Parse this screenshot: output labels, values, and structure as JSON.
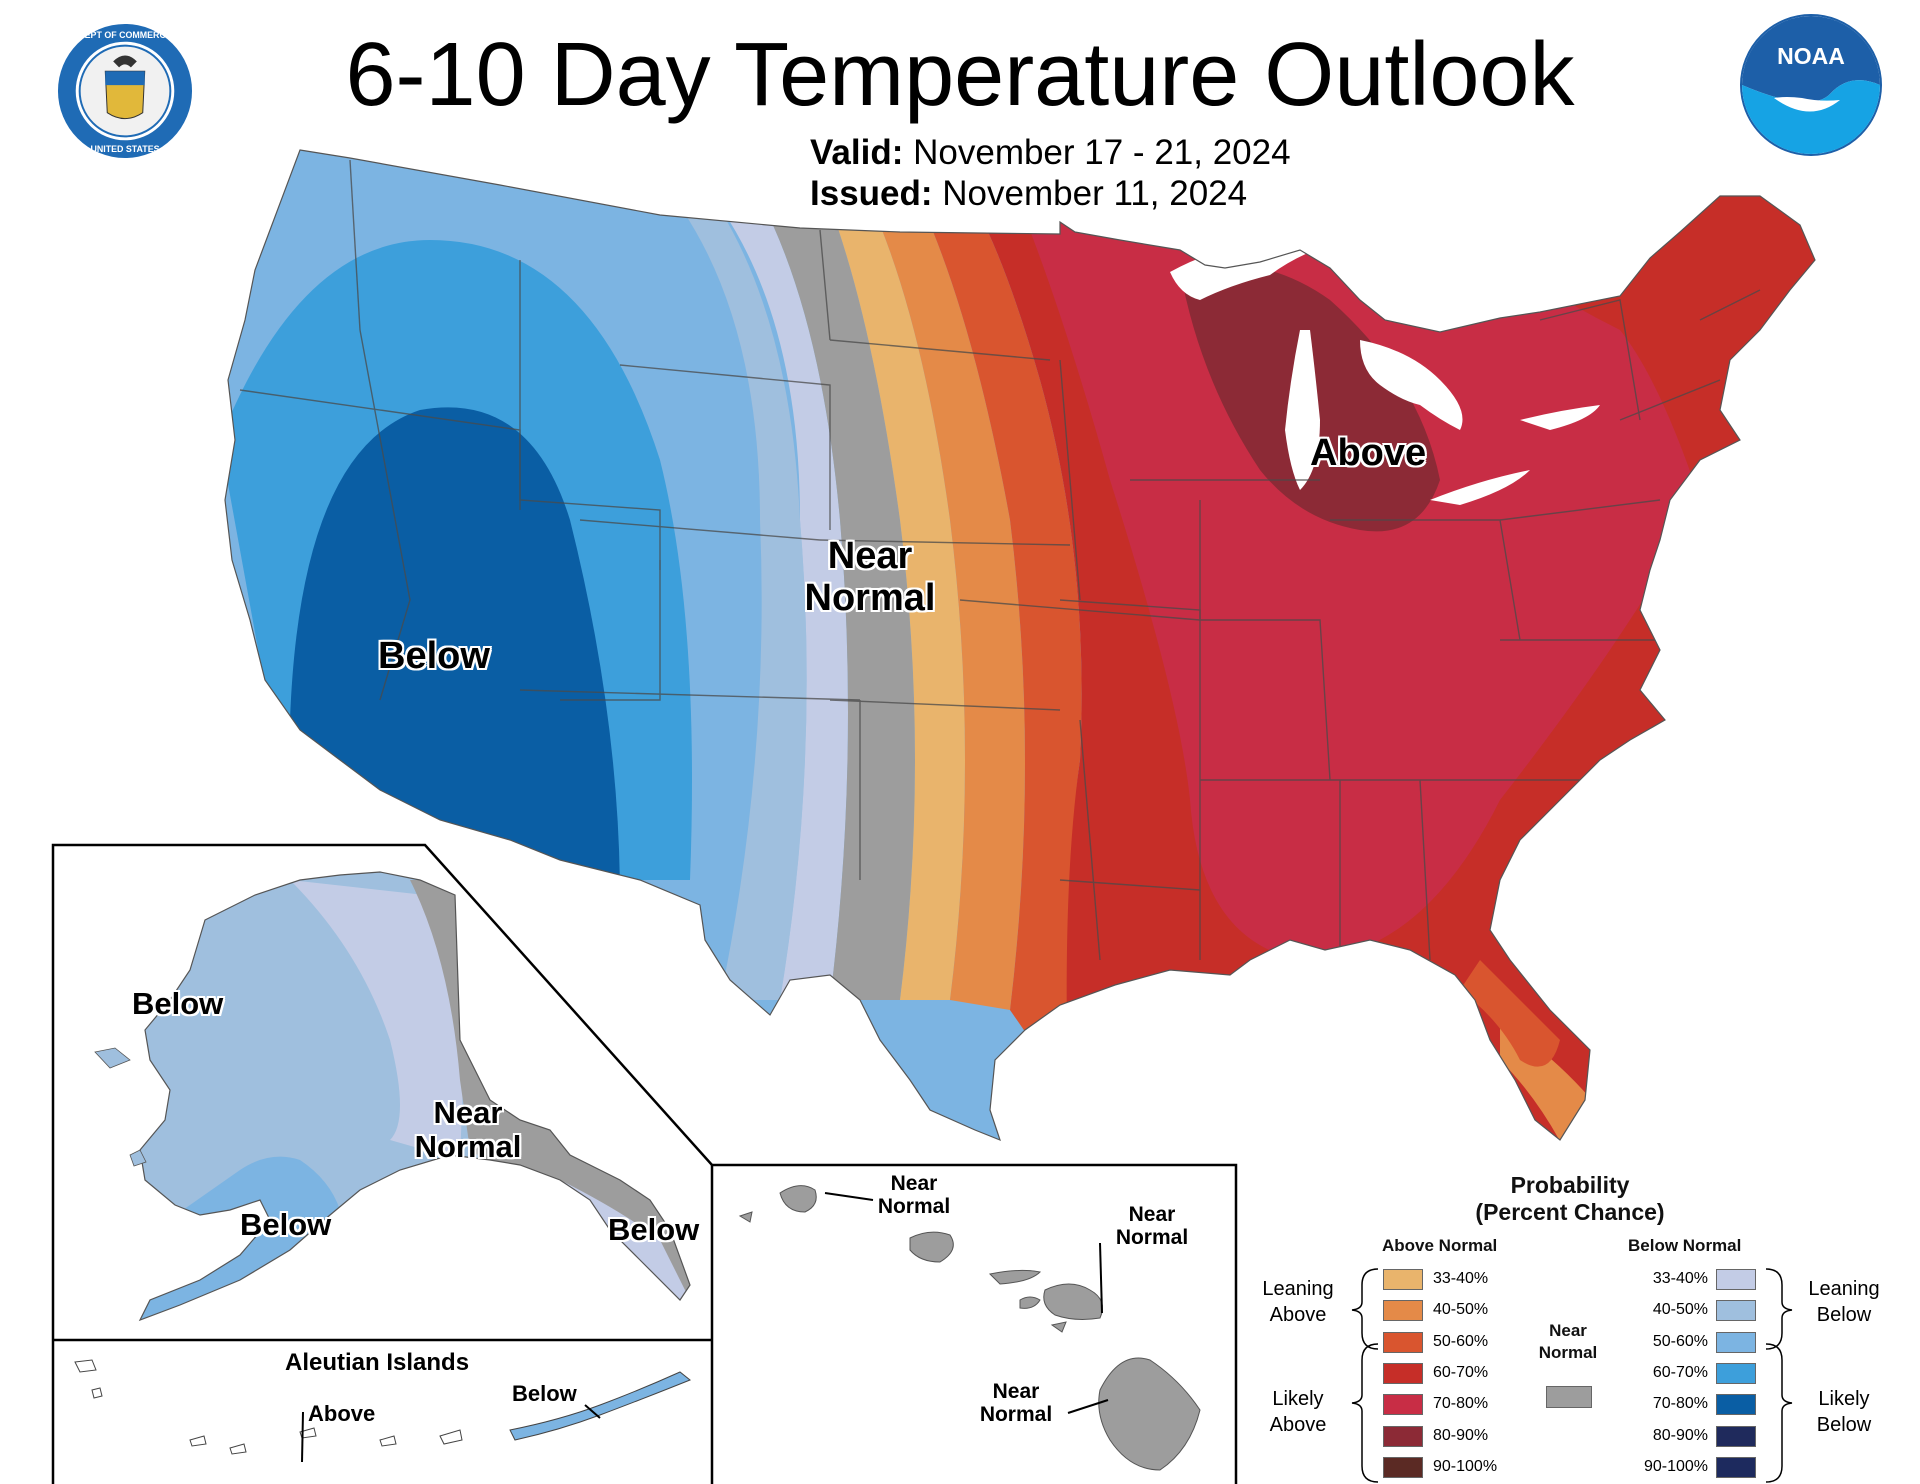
{
  "title": "6-10 Day Temperature Outlook",
  "valid_label": "Valid:",
  "valid_value": "November 17 - 21, 2024",
  "issued_label": "Issued:",
  "issued_value": "November 11, 2024",
  "logos": {
    "seal_text": "DEPARTMENT OF COMMERCE UNITED STATES OF AMERICA",
    "noaa_text": "NOAA"
  },
  "map_labels": {
    "conus_below": "Below",
    "conus_near_1": "Near",
    "conus_near_2": "Normal",
    "conus_above": "Above",
    "ak_below_w": "Below",
    "ak_below_s": "Below",
    "ak_below_se": "Below",
    "ak_near_1": "Near",
    "ak_near_2": "Normal",
    "aleutian_title": "Aleutian Islands",
    "aleutian_above": "Above",
    "aleutian_below": "Below",
    "hi_near_a_1": "Near",
    "hi_near_a_2": "Normal",
    "hi_near_b_1": "Near",
    "hi_near_b_2": "Normal",
    "hi_near_c_1": "Near",
    "hi_near_c_2": "Normal"
  },
  "legend": {
    "title_1": "Probability",
    "title_2": "(Percent Chance)",
    "above_header": "Above Normal",
    "below_header": "Below Normal",
    "near_1": "Near",
    "near_2": "Normal",
    "leaning_above_1": "Leaning",
    "leaning_above_2": "Above",
    "likely_above_1": "Likely",
    "likely_above_2": "Above",
    "leaning_below_1": "Leaning",
    "leaning_below_2": "Below",
    "likely_below_1": "Likely",
    "likely_below_2": "Below",
    "near_color": "#9d9d9d",
    "above": [
      {
        "label": "33-40%",
        "color": "#e9b46c"
      },
      {
        "label": "40-50%",
        "color": "#e48a48"
      },
      {
        "label": "50-60%",
        "color": "#d9552f"
      },
      {
        "label": "60-70%",
        "color": "#c62e28"
      },
      {
        "label": "70-80%",
        "color": "#c82d45"
      },
      {
        "label": "80-90%",
        "color": "#8c2a36"
      },
      {
        "label": "90-100%",
        "color": "#5b2a24"
      }
    ],
    "below": [
      {
        "label": "33-40%",
        "color": "#c3cce6"
      },
      {
        "label": "40-50%",
        "color": "#9fbfde"
      },
      {
        "label": "50-60%",
        "color": "#7cb4e2"
      },
      {
        "label": "60-70%",
        "color": "#3d9fdb"
      },
      {
        "label": "70-80%",
        "color": "#0a5ea4"
      },
      {
        "label": "80-90%",
        "color": "#1f2a5c"
      },
      {
        "label": "90-100%",
        "color": "#1d2a5e"
      }
    ]
  }
}
